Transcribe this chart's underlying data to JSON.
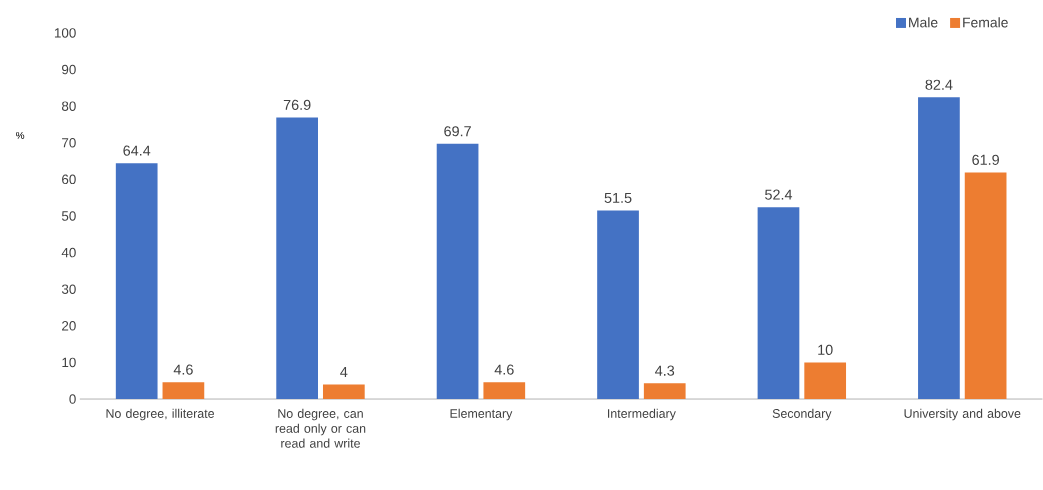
{
  "chart_data": {
    "type": "bar",
    "ylabel": "%",
    "categories": [
      "No degree, illiterate",
      "No degree, can read only or can read and write",
      "Elementary",
      "Intermediary",
      "Secondary",
      "University and above"
    ],
    "series": [
      {
        "name": "Male",
        "color": "#4472c4",
        "values": [
          64.4,
          76.9,
          69.7,
          51.5,
          52.4,
          82.4
        ]
      },
      {
        "name": "Female",
        "color": "#ed7d31",
        "values": [
          4.6,
          4,
          4.6,
          4.3,
          10,
          61.9
        ]
      }
    ],
    "ylim": [
      0,
      100
    ],
    "yticks": [
      0,
      10,
      20,
      30,
      40,
      50,
      60,
      70,
      80,
      90,
      100
    ],
    "data_labels": true,
    "legend": "top right"
  }
}
